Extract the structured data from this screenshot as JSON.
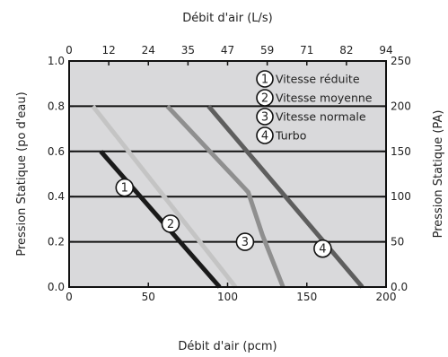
{
  "chart_data": {
    "type": "line",
    "title": "",
    "x_bottom": {
      "label": "Débit d'air (pcm)",
      "ticks": [
        "0",
        "50",
        "100",
        "150",
        "200"
      ],
      "range": [
        0,
        200
      ]
    },
    "x_top": {
      "label": "Débit d'air (L/s)",
      "ticks": [
        "0",
        "12",
        "24",
        "35",
        "47",
        "59",
        "71",
        "82",
        "94"
      ]
    },
    "y_left": {
      "label": "Pression Statique (po d'eau)",
      "ticks": [
        "0.0",
        "0.2",
        "0.4",
        "0.6",
        "0.8",
        "1.0"
      ],
      "range": [
        0,
        1.0
      ]
    },
    "y_right": {
      "label": "Pression Statique (PA)",
      "ticks": [
        "0.0",
        "50",
        "100",
        "150",
        "200",
        "250"
      ]
    },
    "grid": "horizontal",
    "legend": "top-right",
    "background": "#d9d9db",
    "series": [
      {
        "name": "Vitesse réduite",
        "marker": "1",
        "color": "#1a1a1a",
        "x": [
          20,
          95
        ],
        "y": [
          0.6,
          0.0
        ],
        "marker_at": [
          35,
          0.44
        ]
      },
      {
        "name": "Vitesse moyenne",
        "marker": "2",
        "color": "#c4c4c4",
        "x": [
          15,
          105
        ],
        "y": [
          0.8,
          0.0
        ],
        "marker_at": [
          64,
          0.28
        ]
      },
      {
        "name": "Vitesse normale",
        "marker": "3",
        "color": "#8f8f8f",
        "x": [
          62,
          113,
          122,
          135
        ],
        "y": [
          0.8,
          0.42,
          0.23,
          0.0
        ],
        "marker_at": [
          111,
          0.2
        ]
      },
      {
        "name": "Turbo",
        "marker": "4",
        "color": "#5e5e5e",
        "x": [
          88,
          185
        ],
        "y": [
          0.8,
          0.0
        ],
        "marker_at": [
          160,
          0.17
        ]
      }
    ]
  }
}
